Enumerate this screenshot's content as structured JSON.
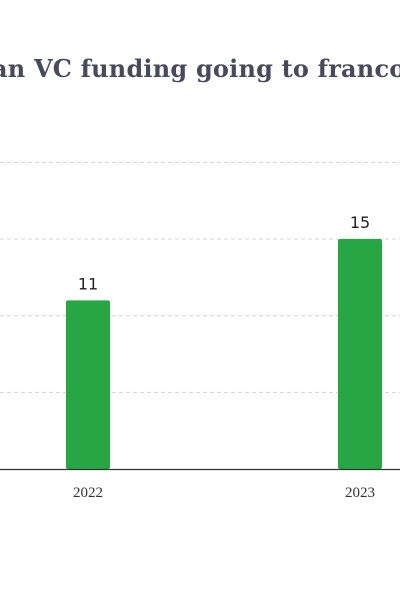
{
  "chart_data": {
    "type": "bar",
    "title": "an VC funding going to francoph",
    "categories": [
      "2022",
      "2023"
    ],
    "values": [
      11,
      15
    ],
    "data_labels": [
      "11",
      "15"
    ],
    "xlabel": "",
    "ylabel": "",
    "ylim": [
      0,
      20
    ],
    "grid": true,
    "grid_values": [
      5,
      10,
      15,
      20
    ],
    "bar_color": "#27a744",
    "grid_color": "#d3d3d3",
    "axis_color": "#333333"
  }
}
